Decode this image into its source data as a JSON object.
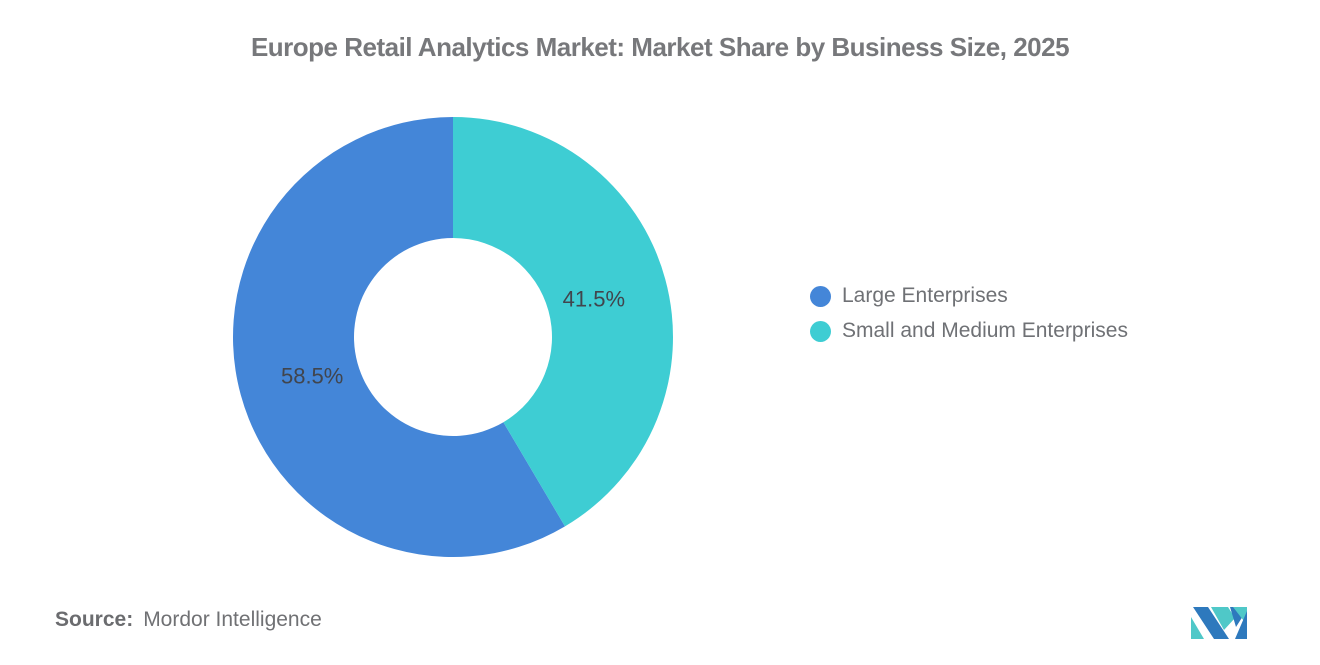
{
  "title": "Europe Retail Analytics Market: Market Share by Business Size, 2025",
  "chart_data": {
    "type": "pie",
    "subtype": "donut",
    "title": "Europe Retail Analytics Market: Market Share by Business Size, 2025",
    "categories": [
      "Large Enterprises",
      "Small and Medium Enterprises"
    ],
    "values": [
      58.5,
      41.5
    ],
    "slice_labels": [
      "58.5%",
      "41.5%"
    ],
    "colors": [
      "#4486d8",
      "#3ecdd3"
    ],
    "start_angle_deg": 0,
    "direction": "counterclockwise",
    "inner_radius_ratio": 0.45,
    "legend_position": "right",
    "label_color": "#41454d"
  },
  "legend": {
    "items": [
      {
        "label": "Large Enterprises",
        "color": "#4486d8"
      },
      {
        "label": "Small and Medium Enterprises",
        "color": "#3ecdd3"
      }
    ]
  },
  "source": {
    "label": "Source:",
    "value": "Mordor Intelligence"
  },
  "logo": {
    "name": "mordor-intelligence-logo",
    "blue": "#2e79bd",
    "teal": "#4fc8c8"
  }
}
